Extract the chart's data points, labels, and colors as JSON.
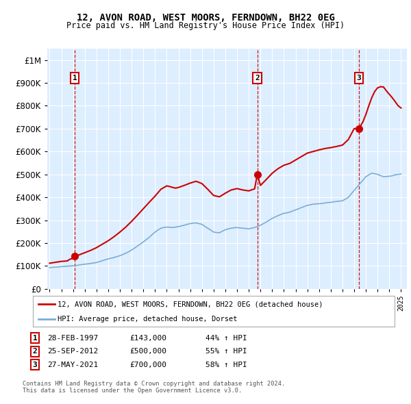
{
  "title1": "12, AVON ROAD, WEST MOORS, FERNDOWN, BH22 0EG",
  "title2": "Price paid vs. HM Land Registry's House Price Index (HPI)",
  "legend_line1": "12, AVON ROAD, WEST MOORS, FERNDOWN, BH22 0EG (detached house)",
  "legend_line2": "HPI: Average price, detached house, Dorset",
  "footer1": "Contains HM Land Registry data © Crown copyright and database right 2024.",
  "footer2": "This data is licensed under the Open Government Licence v3.0.",
  "sales": [
    {
      "num": 1,
      "date": "28-FEB-1997",
      "price": 143000,
      "pct": "44%",
      "year_x": 1997.15
    },
    {
      "num": 2,
      "date": "25-SEP-2012",
      "price": 500000,
      "pct": "55%",
      "year_x": 2012.73
    },
    {
      "num": 3,
      "date": "27-MAY-2021",
      "price": 700000,
      "pct": "58%",
      "year_x": 2021.4
    }
  ],
  "red_line_color": "#cc0000",
  "blue_line_color": "#7aadd4",
  "dashed_line_color": "#cc0000",
  "plot_bg_color": "#ddeeff",
  "ylim": [
    0,
    1050000
  ],
  "xlim": [
    1994.8,
    2025.5
  ],
  "hpi_years": [
    1995.0,
    1995.25,
    1995.5,
    1995.75,
    1996.0,
    1996.25,
    1996.5,
    1996.75,
    1997.0,
    1997.25,
    1997.5,
    1997.75,
    1998.0,
    1998.25,
    1998.5,
    1998.75,
    1999.0,
    1999.25,
    1999.5,
    1999.75,
    2000.0,
    2000.25,
    2000.5,
    2000.75,
    2001.0,
    2001.25,
    2001.5,
    2001.75,
    2002.0,
    2002.25,
    2002.5,
    2002.75,
    2003.0,
    2003.25,
    2003.5,
    2003.75,
    2004.0,
    2004.25,
    2004.5,
    2004.75,
    2005.0,
    2005.25,
    2005.5,
    2005.75,
    2006.0,
    2006.25,
    2006.5,
    2006.75,
    2007.0,
    2007.25,
    2007.5,
    2007.75,
    2008.0,
    2008.25,
    2008.5,
    2008.75,
    2009.0,
    2009.25,
    2009.5,
    2009.75,
    2010.0,
    2010.25,
    2010.5,
    2010.75,
    2011.0,
    2011.25,
    2011.5,
    2011.75,
    2012.0,
    2012.25,
    2012.5,
    2012.75,
    2013.0,
    2013.25,
    2013.5,
    2013.75,
    2014.0,
    2014.25,
    2014.5,
    2014.75,
    2015.0,
    2015.25,
    2015.5,
    2015.75,
    2016.0,
    2016.25,
    2016.5,
    2016.75,
    2017.0,
    2017.25,
    2017.5,
    2017.75,
    2018.0,
    2018.25,
    2018.5,
    2018.75,
    2019.0,
    2019.25,
    2019.5,
    2019.75,
    2020.0,
    2020.25,
    2020.5,
    2020.75,
    2021.0,
    2021.25,
    2021.5,
    2021.75,
    2022.0,
    2022.25,
    2022.5,
    2022.75,
    2023.0,
    2023.25,
    2023.5,
    2023.75,
    2024.0,
    2024.25,
    2024.5,
    2024.75,
    2025.0
  ],
  "hpi_values": [
    93000,
    94000,
    95000,
    96000,
    97000,
    98000,
    99000,
    100000,
    101000,
    102000,
    104000,
    106000,
    108000,
    109000,
    111000,
    113000,
    115000,
    119000,
    123000,
    127000,
    131000,
    134000,
    137000,
    141000,
    145000,
    150000,
    156000,
    162000,
    170000,
    178000,
    187000,
    196000,
    205000,
    215000,
    225000,
    237000,
    248000,
    257000,
    265000,
    268000,
    270000,
    269000,
    268000,
    270000,
    272000,
    275000,
    278000,
    282000,
    285000,
    287000,
    288000,
    285000,
    282000,
    273000,
    265000,
    257000,
    248000,
    246000,
    245000,
    252000,
    258000,
    262000,
    265000,
    267000,
    268000,
    266000,
    265000,
    264000,
    262000,
    265000,
    268000,
    273000,
    278000,
    285000,
    292000,
    300000,
    308000,
    314000,
    320000,
    325000,
    330000,
    332000,
    335000,
    340000,
    345000,
    350000,
    355000,
    360000,
    365000,
    367000,
    370000,
    371000,
    372000,
    373000,
    375000,
    377000,
    378000,
    380000,
    382000,
    383000,
    385000,
    392000,
    400000,
    415000,
    430000,
    445000,
    460000,
    475000,
    490000,
    498000,
    505000,
    503000,
    500000,
    495000,
    490000,
    491000,
    492000,
    494000,
    498000,
    500000,
    502000
  ],
  "red_years": [
    1995.0,
    1995.25,
    1995.5,
    1995.75,
    1996.0,
    1996.25,
    1996.5,
    1996.75,
    1997.0,
    1997.15,
    1997.5,
    1997.75,
    1998.0,
    1998.5,
    1999.0,
    1999.5,
    2000.0,
    2000.5,
    2001.0,
    2001.5,
    2002.0,
    2002.5,
    2003.0,
    2003.5,
    2004.0,
    2004.5,
    2005.0,
    2005.25,
    2005.5,
    2005.75,
    2006.0,
    2006.5,
    2007.0,
    2007.5,
    2008.0,
    2008.5,
    2009.0,
    2009.5,
    2010.0,
    2010.5,
    2011.0,
    2011.5,
    2012.0,
    2012.5,
    2012.73,
    2013.0,
    2013.5,
    2014.0,
    2014.5,
    2015.0,
    2015.5,
    2016.0,
    2016.5,
    2017.0,
    2017.5,
    2018.0,
    2018.5,
    2019.0,
    2019.5,
    2020.0,
    2020.5,
    2021.0,
    2021.4,
    2021.75,
    2022.0,
    2022.25,
    2022.5,
    2022.75,
    2023.0,
    2023.25,
    2023.5,
    2023.75,
    2024.0,
    2024.25,
    2024.5,
    2024.75,
    2025.0
  ],
  "red_values": [
    112000,
    114000,
    116000,
    118000,
    120000,
    121000,
    122000,
    130000,
    133000,
    143000,
    148000,
    153000,
    158000,
    168000,
    180000,
    195000,
    210000,
    228000,
    248000,
    270000,
    295000,
    322000,
    350000,
    378000,
    405000,
    435000,
    450000,
    447000,
    443000,
    440000,
    443000,
    452000,
    462000,
    470000,
    460000,
    435000,
    408000,
    402000,
    418000,
    432000,
    438000,
    432000,
    428000,
    437000,
    500000,
    452000,
    478000,
    505000,
    525000,
    540000,
    548000,
    563000,
    578000,
    593000,
    600000,
    607000,
    613000,
    617000,
    622000,
    628000,
    652000,
    700000,
    700000,
    730000,
    762000,
    800000,
    835000,
    862000,
    878000,
    883000,
    882000,
    865000,
    850000,
    835000,
    818000,
    800000,
    790000
  ]
}
